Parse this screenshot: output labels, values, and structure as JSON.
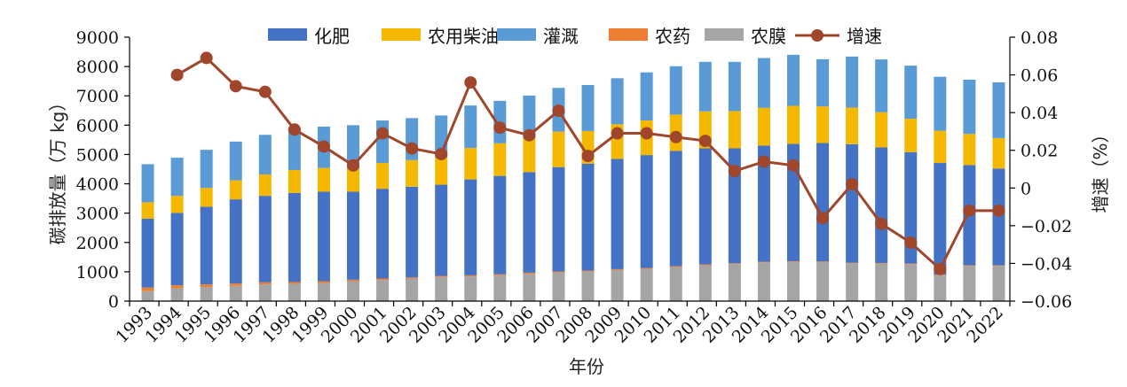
{
  "chart_data": {
    "type": "bar",
    "stacked": true,
    "categories": [
      "1993",
      "1994",
      "1995",
      "1996",
      "1997",
      "1998",
      "1999",
      "2000",
      "2001",
      "2002",
      "2003",
      "2004",
      "2005",
      "2006",
      "2007",
      "2008",
      "2009",
      "2010",
      "2011",
      "2012",
      "2013",
      "2014",
      "2015",
      "2016",
      "2017",
      "2018",
      "2019",
      "2020",
      "2021",
      "2022"
    ],
    "xlabel": "年份",
    "ylabel": "碳排放量（万 kg）",
    "y2label": "增速（%）",
    "ylim": [
      0,
      9000
    ],
    "y2lim": [
      -0.06,
      0.08
    ],
    "yticks": [
      "0",
      "1000",
      "2000",
      "3000",
      "4000",
      "5000",
      "6000",
      "7000",
      "8000",
      "9000"
    ],
    "y2ticks": [
      "−0.06",
      "−0.04",
      "−0.02",
      "0",
      "0.02",
      "0.04",
      "0.06",
      "0.08"
    ],
    "legend_position": "top",
    "series": [
      {
        "name": "化肥",
        "color": "#4472c4",
        "values": [
          2350,
          2470,
          2650,
          2870,
          2950,
          3040,
          3050,
          3000,
          3060,
          3090,
          3110,
          3270,
          3350,
          3430,
          3560,
          3650,
          3760,
          3850,
          3930,
          3960,
          3920,
          3960,
          4000,
          4040,
          4040,
          3940,
          3800,
          3810,
          3420,
          3300
        ]
      },
      {
        "name": "农用柴油",
        "color": "#f5b800",
        "values": [
          560,
          580,
          640,
          650,
          730,
          780,
          810,
          790,
          880,
          910,
          920,
          1070,
          1110,
          1150,
          1210,
          1110,
          1180,
          1180,
          1240,
          1260,
          1270,
          1290,
          1300,
          1250,
          1250,
          1200,
          1140,
          1100,
          1060,
          1040
        ]
      },
      {
        "name": "灌溉",
        "color": "#5b9bd5",
        "values": [
          1300,
          1300,
          1300,
          1320,
          1350,
          1430,
          1410,
          1480,
          1450,
          1430,
          1440,
          1450,
          1450,
          1460,
          1490,
          1570,
          1570,
          1640,
          1650,
          1690,
          1680,
          1700,
          1740,
          1610,
          1740,
          1800,
          1810,
          1840,
          1850,
          1900
        ]
      },
      {
        "name": "农药",
        "color": "#ed7d31",
        "values": [
          120,
          100,
          90,
          80,
          70,
          60,
          60,
          50,
          50,
          40,
          40,
          40,
          40,
          40,
          30,
          30,
          30,
          30,
          30,
          30,
          20,
          20,
          20,
          20,
          20,
          20,
          20,
          20,
          20,
          20
        ]
      },
      {
        "name": "农膜",
        "color": "#a5a5a5",
        "values": [
          340,
          440,
          480,
          520,
          570,
          590,
          620,
          680,
          720,
          770,
          820,
          840,
          880,
          930,
          980,
          1010,
          1060,
          1100,
          1160,
          1220,
          1270,
          1320,
          1340,
          1330,
          1290,
          1280,
          1260,
          880,
          1200,
          1200
        ]
      }
    ],
    "line": {
      "name": "增速",
      "color": "#a0462a",
      "values": [
        null,
        0.06,
        0.069,
        0.054,
        0.051,
        0.031,
        0.022,
        0.012,
        0.029,
        0.021,
        0.018,
        0.056,
        0.032,
        0.028,
        0.041,
        0.017,
        0.029,
        0.029,
        0.027,
        0.025,
        0.009,
        0.014,
        0.012,
        -0.016,
        0.002,
        -0.019,
        -0.029,
        -0.043,
        -0.012,
        -0.012
      ]
    }
  }
}
